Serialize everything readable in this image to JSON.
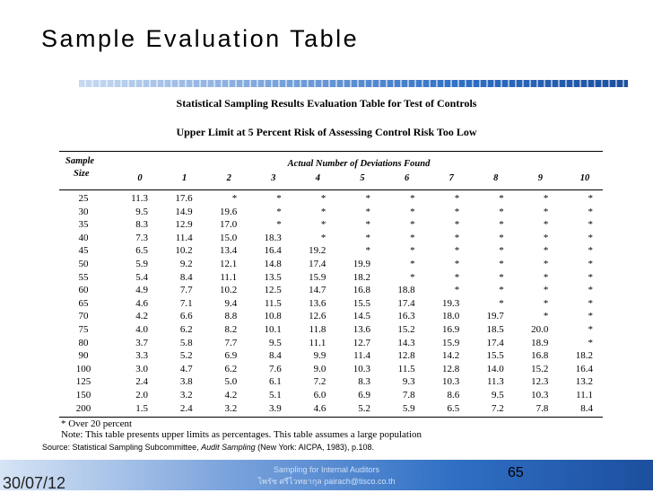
{
  "title": "Sample Evaluation Table",
  "table": {
    "caption": "Statistical Sampling Results Evaluation Table for Test of Controls",
    "subcaption": "Upper Limit at 5 Percent Risk of Assessing Control Risk Too Low",
    "size_header": [
      "Sample",
      "Size"
    ],
    "group_header": "Actual Number of Deviations Found",
    "columns": [
      "0",
      "1",
      "2",
      "3",
      "4",
      "5",
      "6",
      "7",
      "8",
      "9",
      "10"
    ],
    "rows": [
      [
        "25",
        "11.3",
        "17.6",
        "*",
        "*",
        "*",
        "*",
        "*",
        "*",
        "*",
        "*",
        "*"
      ],
      [
        "30",
        "9.5",
        "14.9",
        "19.6",
        "*",
        "*",
        "*",
        "*",
        "*",
        "*",
        "*",
        "*"
      ],
      [
        "35",
        "8.3",
        "12.9",
        "17.0",
        "*",
        "*",
        "*",
        "*",
        "*",
        "*",
        "*",
        "*"
      ],
      [
        "40",
        "7.3",
        "11.4",
        "15.0",
        "18.3",
        "*",
        "*",
        "*",
        "*",
        "*",
        "*",
        "*"
      ],
      [
        "45",
        "6.5",
        "10.2",
        "13.4",
        "16.4",
        "19.2",
        "*",
        "*",
        "*",
        "*",
        "*",
        "*"
      ],
      [
        "50",
        "5.9",
        "9.2",
        "12.1",
        "14.8",
        "17.4",
        "19.9",
        "*",
        "*",
        "*",
        "*",
        "*"
      ],
      [
        "55",
        "5.4",
        "8.4",
        "11.1",
        "13.5",
        "15.9",
        "18.2",
        "*",
        "*",
        "*",
        "*",
        "*"
      ],
      [
        "60",
        "4.9",
        "7.7",
        "10.2",
        "12.5",
        "14.7",
        "16.8",
        "18.8",
        "*",
        "*",
        "*",
        "*"
      ],
      [
        "65",
        "4.6",
        "7.1",
        "9.4",
        "11.5",
        "13.6",
        "15.5",
        "17.4",
        "19.3",
        "*",
        "*",
        "*"
      ],
      [
        "70",
        "4.2",
        "6.6",
        "8.8",
        "10.8",
        "12.6",
        "14.5",
        "16.3",
        "18.0",
        "19.7",
        "*",
        "*"
      ],
      [
        "75",
        "4.0",
        "6.2",
        "8.2",
        "10.1",
        "11.8",
        "13.6",
        "15.2",
        "16.9",
        "18.5",
        "20.0",
        "*"
      ],
      [
        "80",
        "3.7",
        "5.8",
        "7.7",
        "9.5",
        "11.1",
        "12.7",
        "14.3",
        "15.9",
        "17.4",
        "18.9",
        "*"
      ],
      [
        "90",
        "3.3",
        "5.2",
        "6.9",
        "8.4",
        "9.9",
        "11.4",
        "12.8",
        "14.2",
        "15.5",
        "16.8",
        "18.2"
      ],
      [
        "100",
        "3.0",
        "4.7",
        "6.2",
        "7.6",
        "9.0",
        "10.3",
        "11.5",
        "12.8",
        "14.0",
        "15.2",
        "16.4"
      ],
      [
        "125",
        "2.4",
        "3.8",
        "5.0",
        "6.1",
        "7.2",
        "8.3",
        "9.3",
        "10.3",
        "11.3",
        "12.3",
        "13.2"
      ],
      [
        "150",
        "2.0",
        "3.2",
        "4.2",
        "5.1",
        "6.0",
        "6.9",
        "7.8",
        "8.6",
        "9.5",
        "10.3",
        "11.1"
      ],
      [
        "200",
        "1.5",
        "2.4",
        "3.2",
        "3.9",
        "4.6",
        "5.2",
        "5.9",
        "6.5",
        "7.2",
        "7.8",
        "8.4"
      ]
    ],
    "notes": [
      "* Over 20 percent",
      "Note: This table presents upper limits as percentages. This table assumes a large population"
    ]
  },
  "source": {
    "prefix": "Source:  Statistical Sampling Subcommittee, ",
    "title": "Audit Sampling",
    "suffix": " (New York: AICPA, 1983), p.108."
  },
  "footer": {
    "date": "30/07/12",
    "line1": "Sampling for Internal Auditors",
    "line2": "ไพรัช ศรีไวทยากุล  pairach@tisco.co.th",
    "page": "65"
  }
}
